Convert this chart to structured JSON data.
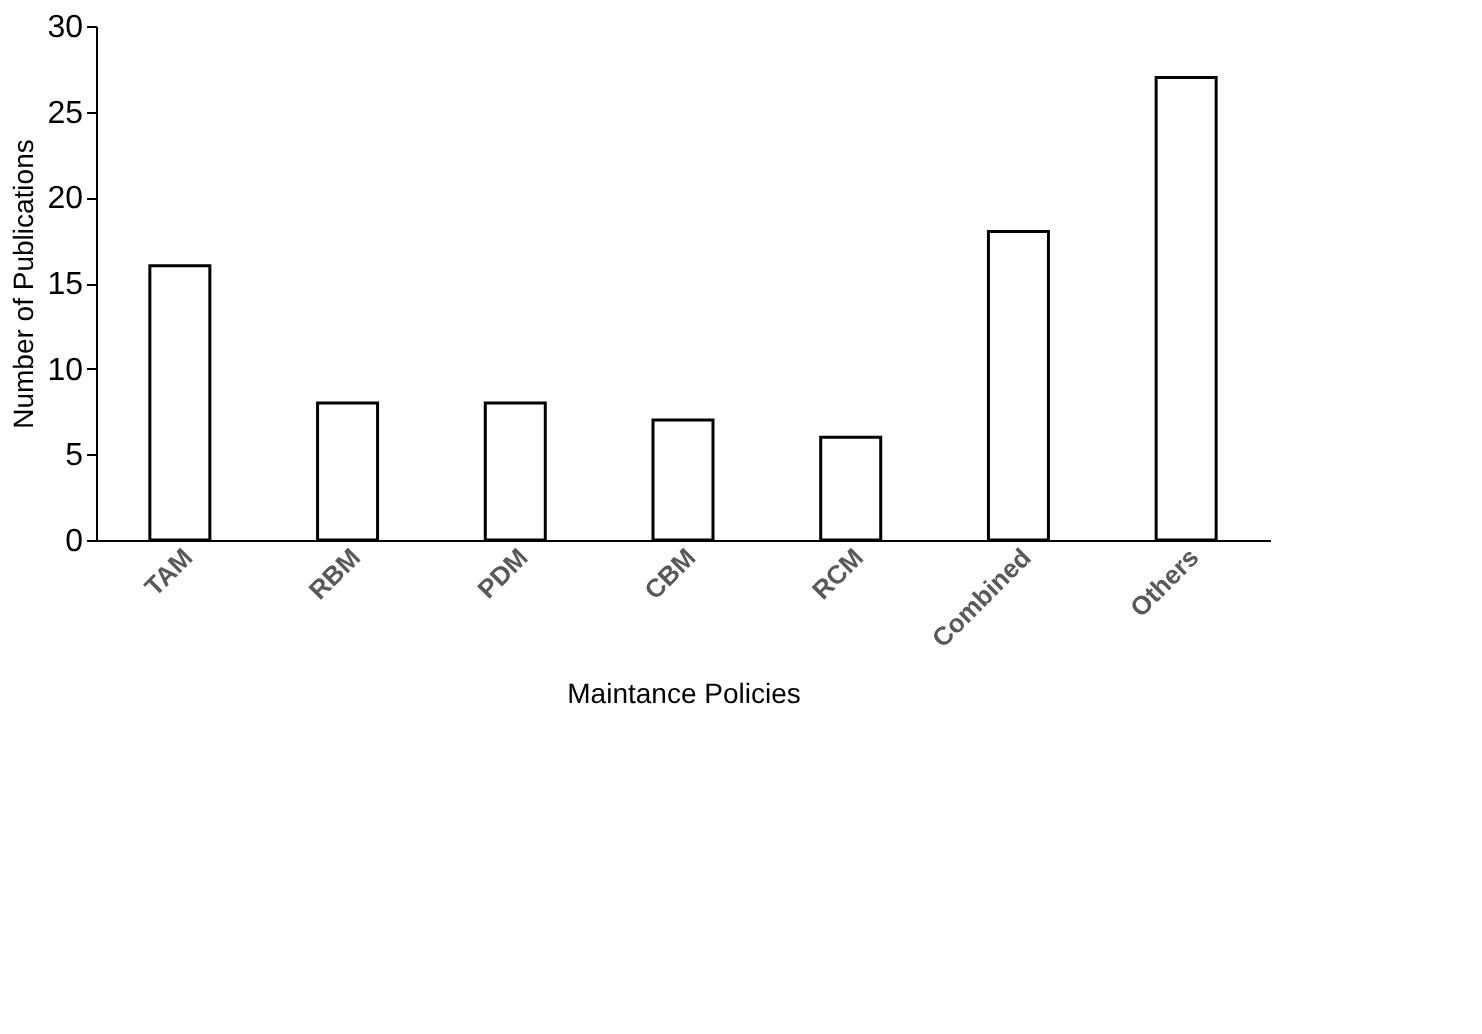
{
  "chart_data": {
    "type": "bar",
    "xlabel": "Maintance Policies",
    "ylabel": "Number of Publications",
    "categories": [
      "TAM",
      "RBM",
      "PDM",
      "CBM",
      "RCM",
      "Combined",
      "Others"
    ],
    "values": [
      16,
      8,
      8,
      7,
      6,
      18,
      27
    ],
    "color": "#ffffff",
    "ylim": [
      0,
      30
    ],
    "yticks": [
      0,
      5,
      10,
      15,
      20,
      25,
      30
    ],
    "grid": false
  }
}
